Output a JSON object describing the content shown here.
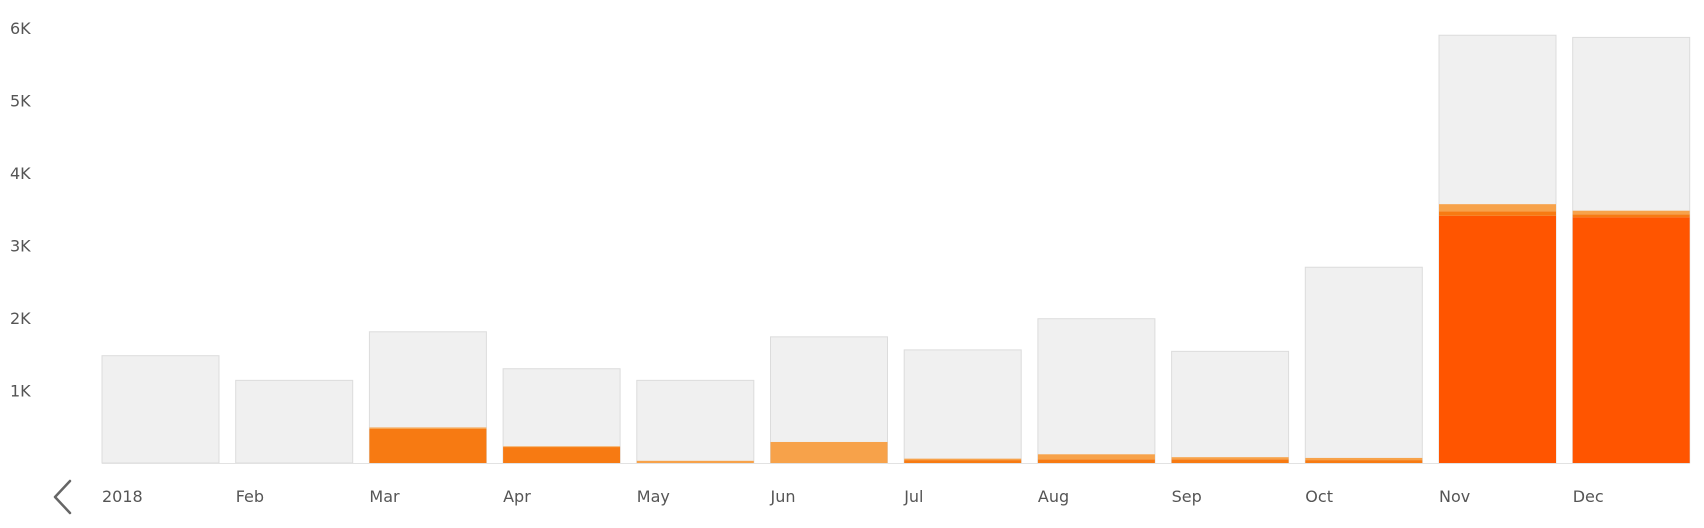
{
  "chart_data": {
    "type": "bar",
    "categories": [
      "2018",
      "Feb",
      "Mar",
      "Apr",
      "May",
      "Jun",
      "Jul",
      "Aug",
      "Sep",
      "Oct",
      "Nov",
      "Dec"
    ],
    "totals": [
      1480,
      1140,
      1810,
      1300,
      1140,
      1740,
      1560,
      1990,
      1540,
      2700,
      5900,
      5870
    ],
    "series": [
      {
        "color": "#ff5500",
        "values": [
          0,
          0,
          0,
          0,
          0,
          0,
          0,
          0,
          0,
          0,
          3410,
          3390
        ]
      },
      {
        "color": "#f77a12",
        "values": [
          0,
          0,
          470,
          220,
          0,
          0,
          40,
          50,
          50,
          40,
          60,
          40
        ]
      },
      {
        "color": "#f7a24a",
        "values": [
          0,
          0,
          20,
          10,
          30,
          290,
          20,
          70,
          30,
          30,
          100,
          50
        ]
      }
    ],
    "yticks": [
      1000,
      2000,
      3000,
      4000,
      5000,
      6000
    ],
    "ytick_labels": [
      "1K",
      "2K",
      "3K",
      "4K",
      "5K",
      "6K"
    ],
    "ylim": [
      0,
      6000
    ],
    "background_color": "#f0f0f0",
    "grid": false,
    "title": "",
    "xlabel": "",
    "ylabel": ""
  },
  "nav": {
    "prev_icon": "chevron-left-icon"
  }
}
